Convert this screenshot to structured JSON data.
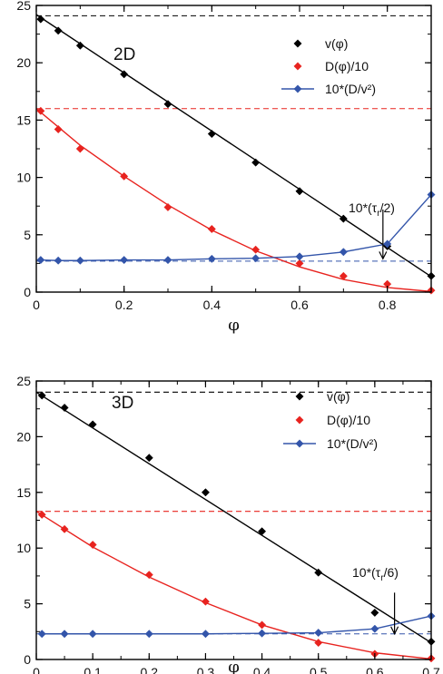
{
  "chart_data": [
    {
      "type": "line",
      "panel_label": "2D",
      "xlabel": "φ",
      "ylabel": "",
      "xlim": [
        0,
        0.9
      ],
      "ylim": [
        0,
        25
      ],
      "x_ticks": [
        "0",
        "0.2",
        "0.4",
        "0.6",
        "0.8"
      ],
      "x_tick_values": [
        0,
        0.2,
        0.4,
        0.6,
        0.8
      ],
      "y_ticks": [
        "0",
        "5",
        "10",
        "15",
        "20",
        "25"
      ],
      "y_tick_values": [
        0,
        5,
        10,
        15,
        20,
        25
      ],
      "series": [
        {
          "name": "v(φ)",
          "color": "#000000",
          "marker": "diamond",
          "line": false,
          "x": [
            0.01,
            0.05,
            0.1,
            0.2,
            0.3,
            0.4,
            0.5,
            0.6,
            0.7,
            0.8,
            0.9
          ],
          "y": [
            23.8,
            22.8,
            21.5,
            19.0,
            16.4,
            13.8,
            11.3,
            8.8,
            6.4,
            4.0,
            1.4
          ]
        },
        {
          "name": "D(φ)/10",
          "color": "#e8231f",
          "marker": "diamond",
          "line": false,
          "x": [
            0.01,
            0.05,
            0.1,
            0.2,
            0.3,
            0.4,
            0.5,
            0.6,
            0.7,
            0.8,
            0.9
          ],
          "y": [
            15.8,
            14.2,
            12.5,
            10.1,
            7.4,
            5.5,
            3.7,
            2.5,
            1.4,
            0.7,
            0.15
          ]
        },
        {
          "name": "10*(D/v²)",
          "color": "#3355aa",
          "marker": "diamond",
          "line": true,
          "x": [
            0.01,
            0.05,
            0.1,
            0.2,
            0.3,
            0.4,
            0.5,
            0.6,
            0.7,
            0.8,
            0.9
          ],
          "y": [
            2.8,
            2.75,
            2.75,
            2.8,
            2.8,
            2.9,
            2.95,
            3.1,
            3.5,
            4.2,
            8.5
          ]
        }
      ],
      "fit_lines": [
        {
          "color": "#000000",
          "x": [
            0.0,
            0.9
          ],
          "y": [
            24.2,
            1.35
          ]
        },
        {
          "color": "#e8231f",
          "x": [
            0.0,
            0.1,
            0.2,
            0.3,
            0.4,
            0.5,
            0.6,
            0.7,
            0.8,
            0.9
          ],
          "y": [
            16.0,
            12.8,
            10.1,
            7.6,
            5.4,
            3.6,
            2.2,
            1.1,
            0.4,
            0.05
          ]
        }
      ],
      "reference_lines": [
        {
          "color": "#000000",
          "y": 24.1,
          "style": "dashed"
        },
        {
          "color": "#e8231f",
          "y": 16.0,
          "style": "dashed"
        },
        {
          "color": "#3355aa",
          "y": 2.7,
          "style": "dashed"
        }
      ],
      "annotation": {
        "text": "10*(τ",
        "sub": "r",
        "rest": "/2)",
        "arrow_x": 0.79,
        "arrow_from_y": 7.2,
        "arrow_to_y": 2.9
      }
    },
    {
      "type": "line",
      "panel_label": "3D",
      "xlabel": "φ",
      "ylabel": "",
      "xlim": [
        0,
        0.7
      ],
      "ylim": [
        0,
        25
      ],
      "x_ticks": [
        "0",
        "0.1",
        "0.2",
        "0.3",
        "0.4",
        "0.5",
        "0.6",
        "0.7"
      ],
      "x_tick_values": [
        0,
        0.1,
        0.2,
        0.3,
        0.4,
        0.5,
        0.6,
        0.7
      ],
      "y_ticks": [
        "0",
        "5",
        "10",
        "15",
        "20",
        "25"
      ],
      "y_tick_values": [
        0,
        5,
        10,
        15,
        20,
        25
      ],
      "series": [
        {
          "name": "v(φ)",
          "color": "#000000",
          "marker": "diamond",
          "line": false,
          "x": [
            0.01,
            0.05,
            0.1,
            0.2,
            0.3,
            0.4,
            0.5,
            0.6,
            0.7
          ],
          "y": [
            23.7,
            22.6,
            21.1,
            18.1,
            15.0,
            11.5,
            7.8,
            4.2,
            1.6
          ]
        },
        {
          "name": "D(φ)/10",
          "color": "#e8231f",
          "marker": "diamond",
          "line": false,
          "x": [
            0.01,
            0.05,
            0.1,
            0.2,
            0.3,
            0.4,
            0.5,
            0.6,
            0.7
          ],
          "y": [
            13.0,
            11.7,
            10.3,
            7.6,
            5.2,
            3.1,
            1.5,
            0.5,
            0.1
          ]
        },
        {
          "name": "10*(D/v²)",
          "color": "#3355aa",
          "marker": "diamond",
          "line": true,
          "x": [
            0.01,
            0.05,
            0.1,
            0.2,
            0.3,
            0.4,
            0.5,
            0.6,
            0.7
          ],
          "y": [
            2.3,
            2.3,
            2.3,
            2.3,
            2.3,
            2.35,
            2.4,
            2.75,
            3.9
          ]
        }
      ],
      "fit_lines": [
        {
          "color": "#000000",
          "x": [
            0.0,
            0.7
          ],
          "y": [
            24.0,
            1.5
          ]
        },
        {
          "color": "#e8231f",
          "x": [
            0.0,
            0.1,
            0.2,
            0.3,
            0.4,
            0.5,
            0.6,
            0.7
          ],
          "y": [
            13.3,
            10.1,
            7.4,
            5.1,
            3.1,
            1.6,
            0.6,
            0.05
          ]
        }
      ],
      "reference_lines": [
        {
          "color": "#000000",
          "y": 24.0,
          "style": "dashed"
        },
        {
          "color": "#e8231f",
          "y": 13.3,
          "style": "dashed"
        },
        {
          "color": "#3355aa",
          "y": 2.3,
          "style": "dashed"
        }
      ],
      "annotation": {
        "text": "10*(τ",
        "sub": "r",
        "rest": "/6)",
        "arrow_x": 0.635,
        "arrow_from_y": 6.0,
        "arrow_to_y": 2.3
      }
    }
  ]
}
